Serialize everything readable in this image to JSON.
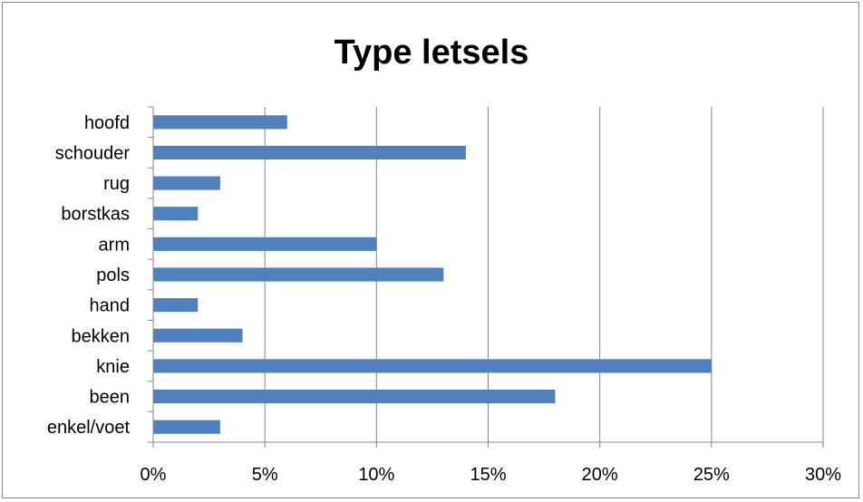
{
  "chart_data": {
    "type": "bar",
    "orientation": "horizontal",
    "title": "Type letsels",
    "xlabel": "",
    "ylabel": "",
    "categories": [
      "hoofd",
      "schouder",
      "rug",
      "borstkas",
      "arm",
      "pols",
      "hand",
      "bekken",
      "knie",
      "been",
      "enkel/voet"
    ],
    "values": [
      6,
      14,
      3,
      2,
      10,
      13,
      2,
      4,
      25,
      18,
      3
    ],
    "xlim": [
      0,
      30
    ],
    "x_ticks": [
      0,
      5,
      10,
      15,
      20,
      25,
      30
    ],
    "x_tick_labels": [
      "0%",
      "5%",
      "10%",
      "15%",
      "20%",
      "25%",
      "30%"
    ],
    "grid": "vertical",
    "legend": "none",
    "bar_color": "#4f81bd",
    "grid_color": "#878787"
  }
}
